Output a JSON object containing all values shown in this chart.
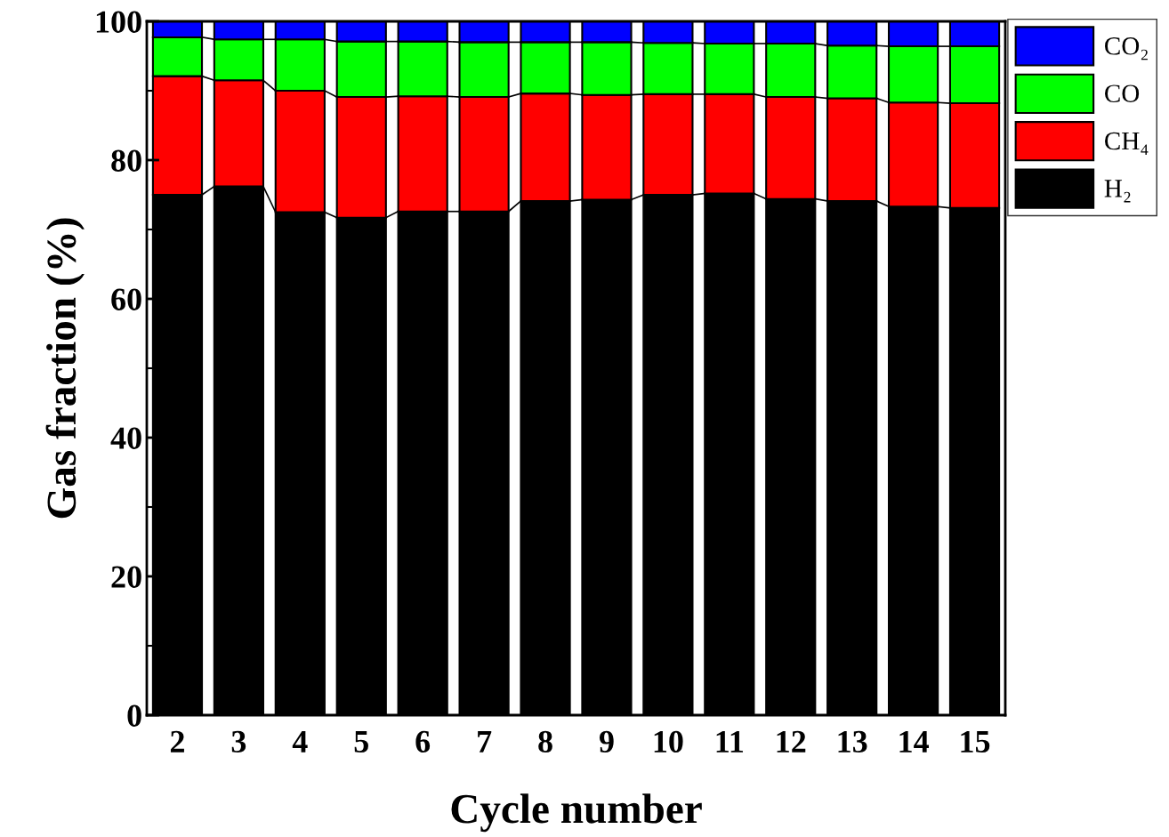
{
  "chart_data": {
    "type": "bar",
    "stacked": true,
    "xlabel": "Cycle number",
    "ylabel": "Gas fraction (%)",
    "categories": [
      "2",
      "3",
      "4",
      "5",
      "6",
      "7",
      "8",
      "9",
      "10",
      "11",
      "12",
      "13",
      "14",
      "15"
    ],
    "ylim": [
      0,
      100
    ],
    "yticks": [
      0,
      20,
      40,
      60,
      80,
      100
    ],
    "legend": "right",
    "series": [
      {
        "name": "H₂",
        "color": "#000000",
        "values": [
          75.0,
          76.2,
          72.5,
          71.7,
          72.6,
          72.6,
          74.1,
          74.3,
          75.0,
          75.2,
          74.4,
          74.1,
          73.3,
          73.1
        ]
      },
      {
        "name": "CH₄",
        "color": "#ff0000",
        "values": [
          17.1,
          15.3,
          17.5,
          17.4,
          16.6,
          16.5,
          15.5,
          15.1,
          14.5,
          14.3,
          14.7,
          14.8,
          15.0,
          15.1
        ]
      },
      {
        "name": "CO",
        "color": "#00ff00",
        "values": [
          5.6,
          5.9,
          7.4,
          8.0,
          7.9,
          7.9,
          7.4,
          7.6,
          7.4,
          7.3,
          7.7,
          7.6,
          8.1,
          8.2
        ]
      },
      {
        "name": "CO₂",
        "color": "#0000ff",
        "values": [
          2.3,
          2.6,
          2.6,
          2.9,
          2.9,
          3.0,
          3.0,
          3.0,
          3.1,
          3.2,
          3.2,
          3.5,
          3.6,
          3.6
        ]
      }
    ]
  }
}
